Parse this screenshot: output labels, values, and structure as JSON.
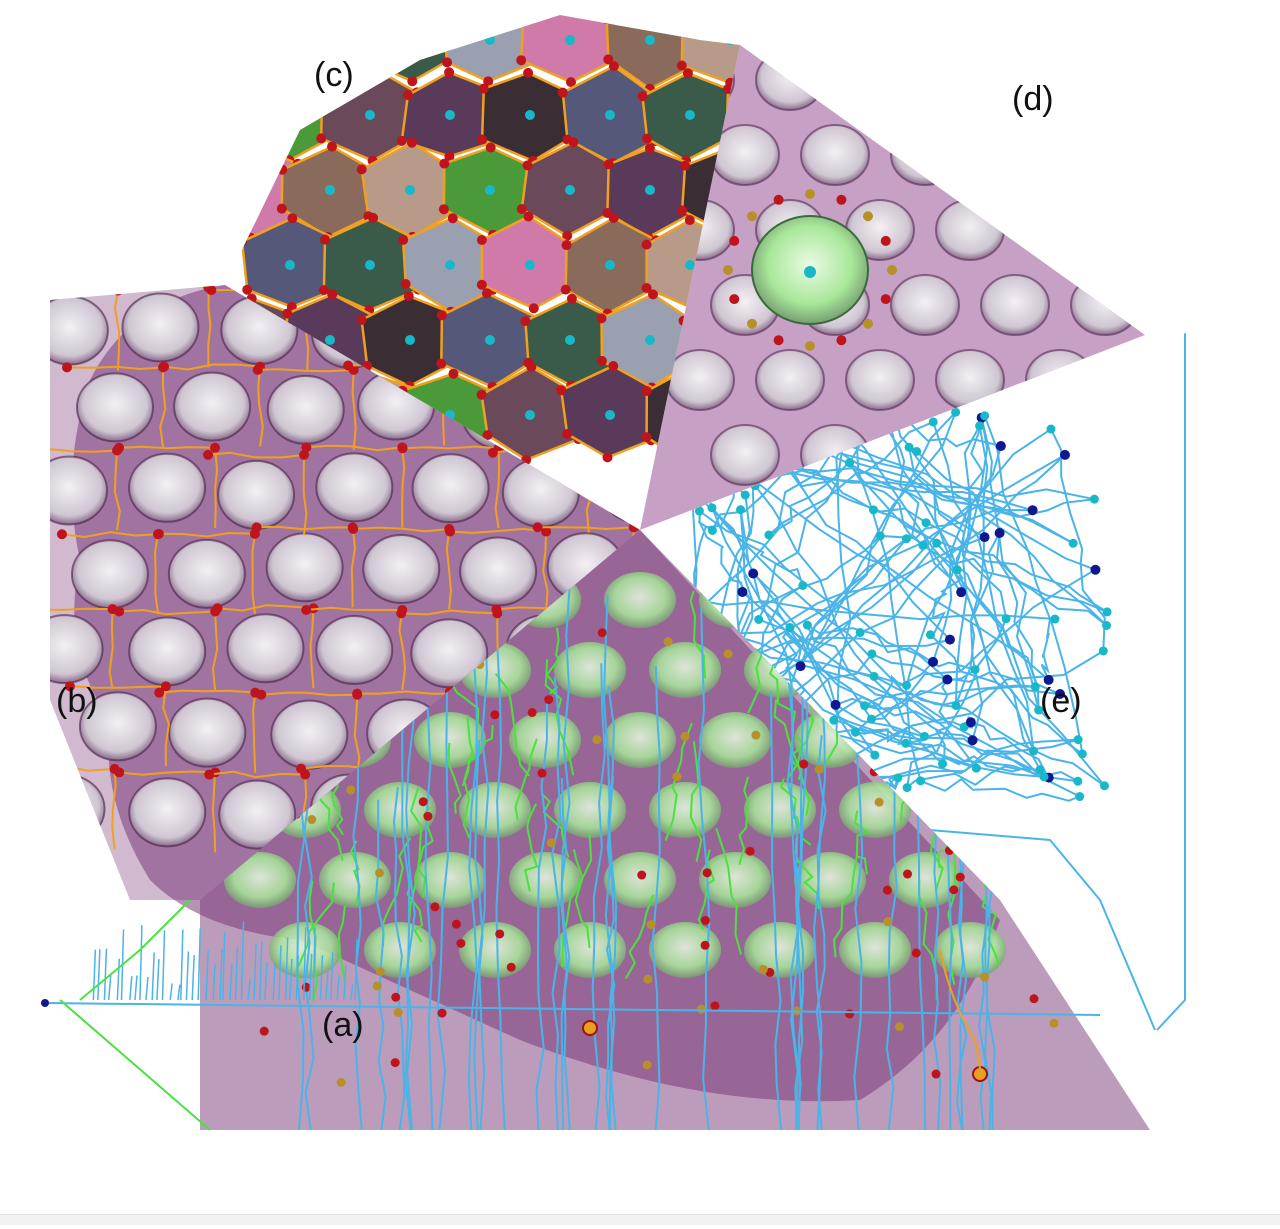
{
  "panels": {
    "a": {
      "label": "(a)"
    },
    "b": {
      "label": "(b)"
    },
    "c": {
      "label": "(c)"
    },
    "d": {
      "label": "(d)"
    },
    "e": {
      "label": "(e)"
    }
  },
  "colors": {
    "membrane": "#7a3a78",
    "membrane_light": "#b98ab6",
    "pore_fill": "#e9e4ea",
    "edge_orange": "#f0a020",
    "node_red": "#c0141c",
    "node_cyan": "#19b8c8",
    "node_blue": "#101890",
    "line_blue": "#4ab4e8",
    "line_green": "#4ce040",
    "cell_green": "#4a9a3a",
    "cell_dark": "#3a2e34",
    "cell_pink": "#d07aaa",
    "cell_slate": "#555878"
  }
}
